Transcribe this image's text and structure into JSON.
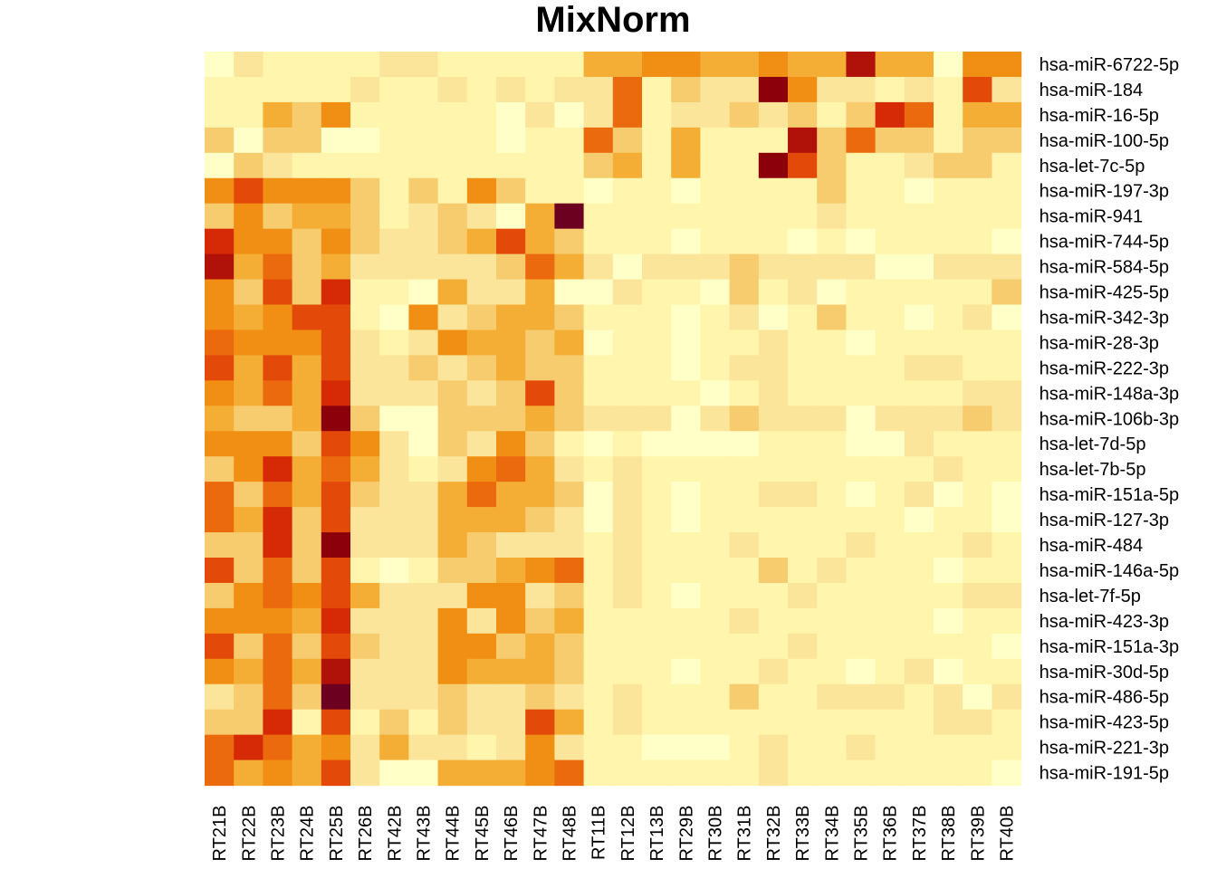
{
  "chart_data": {
    "type": "heatmap",
    "title": "MixNorm",
    "x_labels": [
      "RT21B",
      "RT22B",
      "RT23B",
      "RT24B",
      "RT25B",
      "RT26B",
      "RT42B",
      "RT43B",
      "RT44B",
      "RT45B",
      "RT46B",
      "RT47B",
      "RT48B",
      "RT11B",
      "RT12B",
      "RT13B",
      "RT29B",
      "RT30B",
      "RT31B",
      "RT32B",
      "RT33B",
      "RT34B",
      "RT35B",
      "RT36B",
      "RT37B",
      "RT38B",
      "RT39B",
      "RT40B"
    ],
    "y_labels": [
      "hsa-miR-6722-5p",
      "hsa-miR-184",
      "hsa-miR-16-5p",
      "hsa-miR-100-5p",
      "hsa-let-7c-5p",
      "hsa-miR-197-3p",
      "hsa-miR-941",
      "hsa-miR-744-5p",
      "hsa-miR-584-5p",
      "hsa-miR-425-5p",
      "hsa-miR-342-3p",
      "hsa-miR-28-3p",
      "hsa-miR-222-3p",
      "hsa-miR-148a-3p",
      "hsa-miR-106b-3p",
      "hsa-let-7d-5p",
      "hsa-let-7b-5p",
      "hsa-miR-151a-5p",
      "hsa-miR-127-3p",
      "hsa-miR-484",
      "hsa-miR-146a-5p",
      "hsa-let-7f-5p",
      "hsa-miR-423-3p",
      "hsa-miR-151a-3p",
      "hsa-miR-30d-5p",
      "hsa-miR-486-5p",
      "hsa-miR-423-5p",
      "hsa-miR-221-3p",
      "hsa-miR-191-5p"
    ],
    "color_scale": [
      "#FFFFC8",
      "#FFF5AD",
      "#FBE59A",
      "#F6CC6E",
      "#F4AE36",
      "#F18F14",
      "#EC6A0E",
      "#E34A0A",
      "#D62A06",
      "#B0120A",
      "#8C000C",
      "#6B0021"
    ],
    "grid": false,
    "legend": "none",
    "values": [
      [
        0,
        2,
        1,
        1,
        1,
        1,
        2,
        2,
        1,
        1,
        1,
        1,
        1,
        4,
        4,
        5,
        5,
        4,
        4,
        5,
        4,
        4,
        9,
        4,
        4,
        0,
        5,
        5
      ],
      [
        1,
        1,
        1,
        1,
        1,
        2,
        1,
        1,
        2,
        1,
        2,
        1,
        2,
        2,
        6,
        1,
        3,
        2,
        2,
        10,
        5,
        2,
        2,
        1,
        2,
        1,
        7,
        2
      ],
      [
        1,
        1,
        4,
        3,
        5,
        1,
        1,
        1,
        1,
        1,
        0,
        2,
        0,
        2,
        6,
        1,
        2,
        2,
        3,
        2,
        3,
        1,
        3,
        8,
        6,
        1,
        4,
        4
      ],
      [
        3,
        0,
        3,
        3,
        0,
        0,
        1,
        1,
        1,
        1,
        0,
        1,
        1,
        6,
        3,
        1,
        4,
        1,
        1,
        1,
        9,
        3,
        6,
        3,
        3,
        1,
        3,
        3
      ],
      [
        0,
        3,
        2,
        1,
        1,
        1,
        1,
        1,
        1,
        1,
        1,
        1,
        1,
        3,
        4,
        1,
        4,
        1,
        1,
        10,
        7,
        3,
        1,
        1,
        2,
        3,
        3,
        1
      ],
      [
        5,
        7,
        5,
        5,
        5,
        3,
        1,
        3,
        1,
        5,
        3,
        1,
        1,
        0,
        1,
        1,
        0,
        1,
        1,
        1,
        1,
        3,
        1,
        1,
        0,
        1,
        1,
        1
      ],
      [
        3,
        5,
        3,
        4,
        4,
        3,
        1,
        2,
        3,
        2,
        0,
        4,
        11,
        1,
        1,
        1,
        1,
        1,
        1,
        1,
        1,
        2,
        1,
        1,
        1,
        1,
        1,
        1
      ],
      [
        8,
        5,
        5,
        3,
        5,
        3,
        2,
        2,
        3,
        4,
        7,
        4,
        3,
        1,
        1,
        1,
        0,
        1,
        1,
        1,
        0,
        1,
        0,
        1,
        1,
        1,
        1,
        0
      ],
      [
        9,
        4,
        6,
        3,
        4,
        2,
        2,
        2,
        2,
        2,
        3,
        6,
        4,
        2,
        0,
        2,
        2,
        2,
        3,
        2,
        2,
        2,
        2,
        0,
        0,
        2,
        2,
        2
      ],
      [
        5,
        3,
        7,
        3,
        8,
        1,
        1,
        0,
        4,
        2,
        2,
        4,
        0,
        0,
        2,
        1,
        1,
        0,
        3,
        1,
        2,
        0,
        1,
        1,
        1,
        1,
        1,
        3
      ],
      [
        5,
        4,
        5,
        7,
        7,
        1,
        0,
        5,
        2,
        3,
        4,
        4,
        3,
        1,
        1,
        1,
        0,
        1,
        2,
        0,
        1,
        3,
        1,
        1,
        0,
        1,
        2,
        0
      ],
      [
        6,
        5,
        5,
        5,
        7,
        2,
        1,
        2,
        5,
        4,
        4,
        3,
        4,
        0,
        1,
        1,
        0,
        1,
        1,
        2,
        1,
        1,
        0,
        1,
        1,
        1,
        1,
        1
      ],
      [
        7,
        4,
        7,
        4,
        7,
        2,
        2,
        3,
        2,
        3,
        4,
        3,
        3,
        1,
        1,
        1,
        0,
        1,
        2,
        2,
        1,
        1,
        1,
        1,
        2,
        2,
        1,
        1
      ],
      [
        5,
        4,
        6,
        4,
        8,
        2,
        2,
        2,
        3,
        2,
        3,
        7,
        3,
        1,
        1,
        1,
        1,
        0,
        1,
        2,
        1,
        1,
        1,
        1,
        1,
        1,
        2,
        2
      ],
      [
        4,
        3,
        3,
        4,
        10,
        3,
        0,
        0,
        3,
        3,
        3,
        4,
        3,
        2,
        2,
        2,
        0,
        2,
        3,
        2,
        2,
        2,
        0,
        2,
        2,
        2,
        3,
        2
      ],
      [
        5,
        5,
        5,
        3,
        7,
        5,
        2,
        0,
        3,
        2,
        5,
        3,
        1,
        0,
        1,
        0,
        0,
        0,
        0,
        1,
        1,
        1,
        0,
        0,
        2,
        1,
        1,
        1
      ],
      [
        3,
        5,
        8,
        4,
        6,
        4,
        2,
        1,
        2,
        5,
        6,
        4,
        2,
        1,
        2,
        1,
        1,
        1,
        1,
        1,
        1,
        1,
        1,
        1,
        1,
        2,
        1,
        1
      ],
      [
        6,
        3,
        6,
        4,
        7,
        3,
        2,
        2,
        4,
        6,
        4,
        4,
        3,
        0,
        2,
        1,
        0,
        1,
        1,
        2,
        2,
        1,
        0,
        1,
        2,
        0,
        1,
        0
      ],
      [
        6,
        4,
        8,
        3,
        7,
        2,
        2,
        2,
        4,
        4,
        4,
        3,
        2,
        0,
        2,
        1,
        0,
        1,
        1,
        1,
        1,
        1,
        1,
        1,
        0,
        1,
        1,
        0
      ],
      [
        3,
        3,
        8,
        3,
        10,
        2,
        2,
        2,
        4,
        3,
        2,
        2,
        2,
        1,
        2,
        1,
        1,
        1,
        2,
        1,
        1,
        1,
        2,
        1,
        1,
        1,
        2,
        1
      ],
      [
        7,
        3,
        6,
        3,
        7,
        1,
        0,
        1,
        3,
        3,
        4,
        5,
        6,
        1,
        2,
        1,
        1,
        1,
        1,
        3,
        1,
        2,
        1,
        1,
        1,
        0,
        1,
        1
      ],
      [
        3,
        5,
        6,
        5,
        7,
        4,
        2,
        2,
        2,
        5,
        5,
        2,
        3,
        1,
        2,
        1,
        0,
        1,
        1,
        1,
        2,
        1,
        1,
        1,
        1,
        1,
        2,
        2
      ],
      [
        5,
        5,
        5,
        4,
        8,
        2,
        2,
        2,
        5,
        2,
        5,
        3,
        4,
        1,
        1,
        1,
        1,
        1,
        2,
        1,
        1,
        1,
        1,
        1,
        1,
        0,
        1,
        1
      ],
      [
        7,
        3,
        6,
        3,
        7,
        3,
        2,
        2,
        5,
        5,
        3,
        4,
        3,
        1,
        1,
        1,
        1,
        1,
        1,
        1,
        2,
        1,
        1,
        1,
        1,
        1,
        1,
        0
      ],
      [
        5,
        4,
        6,
        4,
        9,
        2,
        2,
        2,
        5,
        4,
        4,
        4,
        3,
        1,
        1,
        1,
        0,
        1,
        1,
        2,
        1,
        1,
        0,
        1,
        2,
        0,
        1,
        1
      ],
      [
        2,
        3,
        6,
        3,
        11,
        2,
        2,
        2,
        3,
        2,
        2,
        3,
        2,
        1,
        2,
        1,
        1,
        1,
        3,
        1,
        1,
        2,
        2,
        2,
        1,
        2,
        0,
        2
      ],
      [
        3,
        3,
        8,
        1,
        7,
        1,
        3,
        1,
        3,
        2,
        2,
        7,
        4,
        1,
        2,
        1,
        1,
        1,
        1,
        1,
        1,
        1,
        1,
        1,
        1,
        2,
        2,
        1
      ],
      [
        6,
        8,
        6,
        4,
        5,
        2,
        4,
        2,
        2,
        1,
        2,
        5,
        2,
        1,
        1,
        0,
        0,
        0,
        1,
        2,
        1,
        1,
        2,
        1,
        1,
        1,
        1,
        1
      ],
      [
        6,
        4,
        5,
        4,
        7,
        2,
        0,
        0,
        4,
        4,
        4,
        5,
        6,
        1,
        1,
        1,
        1,
        1,
        1,
        2,
        1,
        1,
        1,
        1,
        1,
        1,
        1,
        0
      ]
    ]
  }
}
